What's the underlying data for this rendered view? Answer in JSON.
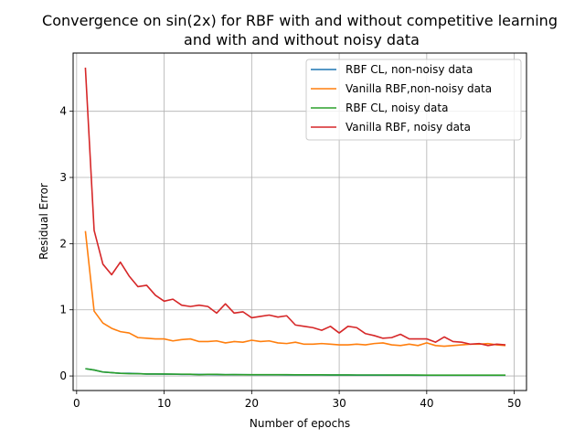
{
  "chart_data": {
    "type": "line",
    "title_line1": "Convergence on sin(2x) for RBF with and without competitive learning",
    "title_line2": "and with and without noisy data",
    "xlabel": "Number of epochs",
    "ylabel": "Residual Error",
    "xlim": [
      -0.4,
      51.4
    ],
    "ylim": [
      -0.22,
      4.88
    ],
    "x_ticks": [
      0,
      10,
      20,
      30,
      40,
      50
    ],
    "y_ticks": [
      0,
      1,
      2,
      3,
      4
    ],
    "grid": true,
    "legend_position": "top-right",
    "x": [
      1,
      2,
      3,
      4,
      5,
      6,
      7,
      8,
      9,
      10,
      11,
      12,
      13,
      14,
      15,
      16,
      17,
      18,
      19,
      20,
      21,
      22,
      23,
      24,
      25,
      26,
      27,
      28,
      29,
      30,
      31,
      32,
      33,
      34,
      35,
      36,
      37,
      38,
      39,
      40,
      41,
      42,
      43,
      44,
      45,
      46,
      47,
      48,
      49
    ],
    "series": [
      {
        "name": "RBF CL, non-noisy data",
        "color": "#1f77b4",
        "values": [
          0.11,
          0.09,
          0.06,
          0.05,
          0.04,
          0.04,
          0.035,
          0.03,
          0.03,
          0.028,
          0.027,
          0.025,
          0.024,
          0.023,
          0.022,
          0.021,
          0.02,
          0.02,
          0.019,
          0.018,
          0.018,
          0.017,
          0.017,
          0.016,
          0.016,
          0.015,
          0.015,
          0.015,
          0.014,
          0.014,
          0.014,
          0.013,
          0.013,
          0.013,
          0.012,
          0.012,
          0.012,
          0.012,
          0.011,
          0.011,
          0.011,
          0.011,
          0.01,
          0.01,
          0.01,
          0.01,
          0.01,
          0.01,
          0.01
        ]
      },
      {
        "name": "Vanilla RBF,non-noisy data",
        "color": "#ff7f0e",
        "values": [
          2.19,
          0.98,
          0.8,
          0.72,
          0.67,
          0.65,
          0.58,
          0.57,
          0.56,
          0.56,
          0.53,
          0.55,
          0.56,
          0.52,
          0.52,
          0.53,
          0.5,
          0.52,
          0.51,
          0.54,
          0.52,
          0.53,
          0.5,
          0.49,
          0.51,
          0.48,
          0.48,
          0.49,
          0.48,
          0.47,
          0.47,
          0.48,
          0.47,
          0.49,
          0.5,
          0.47,
          0.46,
          0.48,
          0.46,
          0.5,
          0.46,
          0.45,
          0.46,
          0.47,
          0.48,
          0.48,
          0.49,
          0.47,
          0.46
        ]
      },
      {
        "name": "RBF CL, noisy data",
        "color": "#2ca02c",
        "values": [
          0.11,
          0.09,
          0.06,
          0.05,
          0.04,
          0.035,
          0.035,
          0.03,
          0.03,
          0.03,
          0.028,
          0.027,
          0.026,
          0.02,
          0.025,
          0.024,
          0.02,
          0.022,
          0.02,
          0.02,
          0.02,
          0.02,
          0.02,
          0.019,
          0.018,
          0.018,
          0.017,
          0.017,
          0.016,
          0.016,
          0.016,
          0.015,
          0.015,
          0.015,
          0.015,
          0.014,
          0.014,
          0.014,
          0.014,
          0.013,
          0.013,
          0.013,
          0.013,
          0.013,
          0.012,
          0.012,
          0.012,
          0.012,
          0.012
        ]
      },
      {
        "name": "Vanilla RBF, noisy data",
        "color": "#d62728",
        "values": [
          4.66,
          2.2,
          1.69,
          1.53,
          1.72,
          1.51,
          1.35,
          1.37,
          1.22,
          1.13,
          1.16,
          1.07,
          1.05,
          1.07,
          1.05,
          0.95,
          1.09,
          0.95,
          0.97,
          0.88,
          0.9,
          0.92,
          0.89,
          0.91,
          0.77,
          0.75,
          0.73,
          0.69,
          0.75,
          0.65,
          0.75,
          0.73,
          0.64,
          0.61,
          0.57,
          0.58,
          0.63,
          0.56,
          0.56,
          0.56,
          0.51,
          0.59,
          0.52,
          0.51,
          0.48,
          0.49,
          0.46,
          0.48,
          0.47
        ]
      }
    ]
  }
}
